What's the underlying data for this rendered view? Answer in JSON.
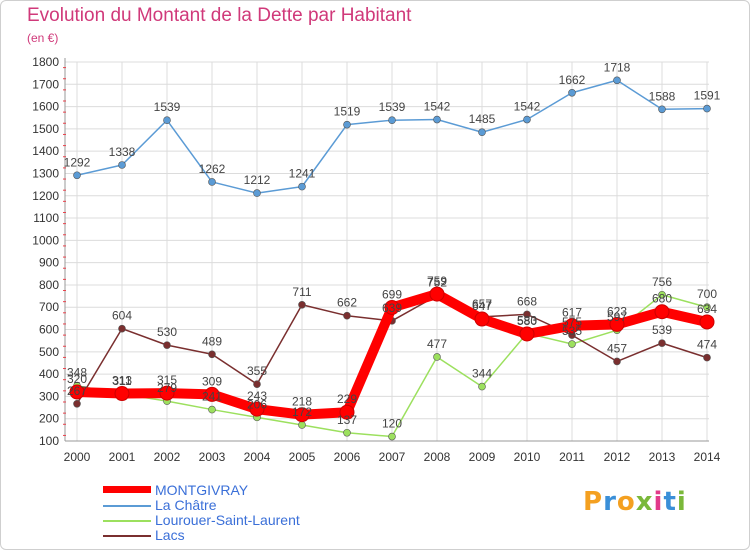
{
  "header": {
    "title": "Evolution du Montant de la Dette par Habitant",
    "subtitle": "(en €)"
  },
  "logo": {
    "letters": [
      "P",
      "r",
      "o",
      "x",
      "i",
      "t",
      "i"
    ],
    "colors": [
      "#f4a020",
      "#3a8fd8",
      "#f4a020",
      "#7ab83a",
      "#e23a8a",
      "#3a8fd8",
      "#7ab83a"
    ]
  },
  "chart_data": {
    "type": "line",
    "title": "Evolution du Montant de la Dette par Habitant",
    "ylabel": "(en €)",
    "xlabel": "",
    "x": [
      "2000",
      "2001",
      "2002",
      "2003",
      "2004",
      "2005",
      "2006",
      "2007",
      "2008",
      "2009",
      "2010",
      "2011",
      "2012",
      "2013",
      "2014"
    ],
    "ylim": [
      100,
      1800
    ],
    "yticks": [
      "100",
      "200",
      "300",
      "400",
      "500",
      "600",
      "700",
      "800",
      "900",
      "1000",
      "1100",
      "1200",
      "1300",
      "1400",
      "1500",
      "1600",
      "1700",
      "1800"
    ],
    "grid": true,
    "legend_position": "bottom-left",
    "series": [
      {
        "name": "MONTGIVRAY",
        "color": "#ff0000",
        "values": [
          320,
          313,
          315,
          309,
          243,
          218,
          229,
          699,
          759,
          647,
          580,
          617,
          623,
          680,
          634
        ],
        "labels": [
          "320",
          "313",
          "315",
          "309",
          "243",
          "218",
          "229",
          "699",
          "759",
          "647",
          "580",
          "617",
          "623",
          "680",
          "634"
        ]
      },
      {
        "name": "La Châtre",
        "color": "#5b9bd5",
        "values": [
          1292,
          1338,
          1539,
          1262,
          1212,
          1241,
          1519,
          1539,
          1542,
          1485,
          1542,
          1662,
          1718,
          1588,
          1591
        ],
        "labels": [
          "1292",
          "1338",
          "1539",
          "1262",
          "1212",
          "1241",
          "1519",
          "1539",
          "1542",
          "1485",
          "1542",
          "1662",
          "1718",
          "1588",
          "1591"
        ]
      },
      {
        "name": "Lourouer-Saint-Laurent",
        "color": "#9ce05e",
        "values": [
          348,
          311,
          279,
          241,
          206,
          172,
          137,
          120,
          477,
          344,
          583,
          535,
          597,
          756,
          700
        ],
        "labels": [
          "348",
          "311",
          "279",
          "241",
          "206",
          "172",
          "137",
          "120",
          "477",
          "344",
          "583",
          "535",
          "597",
          "756",
          "700"
        ]
      },
      {
        "name": "Lacs",
        "color": "#7a2f2f",
        "values": [
          267,
          604,
          530,
          489,
          355,
          711,
          662,
          639,
          752,
          657,
          668,
          575,
          457,
          539,
          474
        ],
        "labels": [
          "267",
          "604",
          "530",
          "489",
          "355",
          "711",
          "662",
          "639",
          "752",
          "657",
          "668",
          "575",
          "457",
          "539",
          "474"
        ]
      }
    ]
  }
}
